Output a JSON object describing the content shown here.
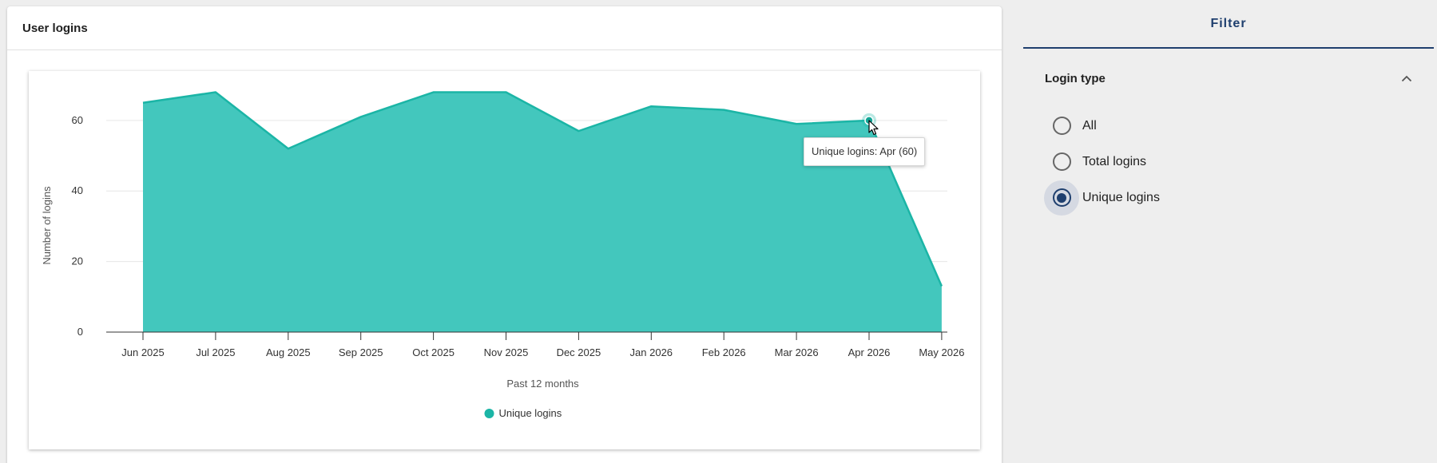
{
  "card": {
    "title": "User logins"
  },
  "chart_data": {
    "type": "area",
    "categories": [
      "Jun 2025",
      "Jul 2025",
      "Aug 2025",
      "Sep 2025",
      "Oct 2025",
      "Nov 2025",
      "Dec 2025",
      "Jan 2026",
      "Feb 2026",
      "Mar 2026",
      "Apr 2026",
      "May 2026"
    ],
    "series": [
      {
        "name": "Unique logins",
        "values": [
          65,
          68,
          52,
          61,
          68,
          68,
          57,
          64,
          63,
          59,
          60,
          13
        ]
      }
    ],
    "ylabel": "Number of logins",
    "xlabel": "Past 12 months",
    "ylim": [
      0,
      74
    ],
    "yticks": [
      0,
      20,
      40,
      60
    ],
    "grid": true,
    "legend": "bottom-center",
    "color": "#1bb5a6",
    "fill_color": "#43c7bd",
    "tooltip": {
      "text": "Unique logins: Apr (60)",
      "index": 10
    }
  },
  "filter": {
    "tab_label": "Filter",
    "section_title": "Login type",
    "options": [
      {
        "label": "All",
        "selected": false
      },
      {
        "label": "Total logins",
        "selected": false
      },
      {
        "label": "Unique logins",
        "selected": true
      }
    ],
    "chevron_icon": "chevron-up-icon",
    "accent_color": "#1f3f6e"
  }
}
